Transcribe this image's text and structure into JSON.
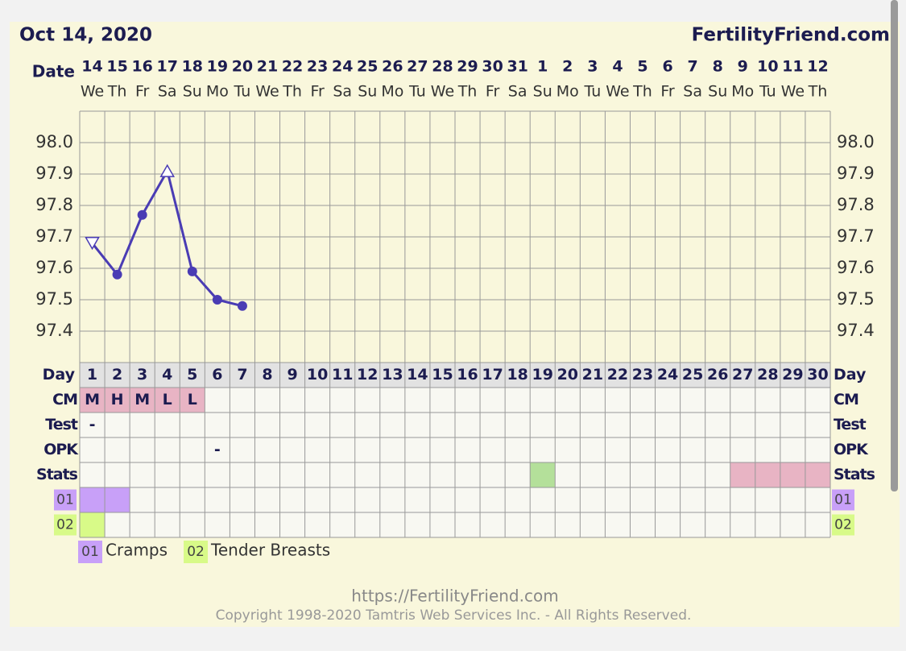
{
  "header": {
    "date": "Oct 14, 2020",
    "brand": "FertilityFriend.com"
  },
  "chart_data": {
    "type": "line",
    "x_label": "Date",
    "categories": [
      "14",
      "15",
      "16",
      "17",
      "18",
      "19",
      "20",
      "21",
      "22",
      "23",
      "24",
      "25",
      "26",
      "27",
      "28",
      "29",
      "30",
      "31",
      "1",
      "2",
      "3",
      "4",
      "5",
      "6",
      "7",
      "8",
      "9",
      "10",
      "11",
      "12"
    ],
    "weekdays": [
      "We",
      "Th",
      "Fr",
      "Sa",
      "Su",
      "Mo",
      "Tu",
      "We",
      "Th",
      "Fr",
      "Sa",
      "Su",
      "Mo",
      "Tu",
      "We",
      "Th",
      "Fr",
      "Sa",
      "Su",
      "Mo",
      "Tu",
      "We",
      "Th",
      "Fr",
      "Sa",
      "Su",
      "Mo",
      "Tu",
      "We",
      "Th"
    ],
    "series": [
      {
        "color": "#4a3cb4",
        "values": [
          97.68,
          97.58,
          97.77,
          97.91,
          97.59,
          97.5,
          97.48,
          null,
          null,
          null,
          null,
          null,
          null,
          null,
          null,
          null,
          null,
          null,
          null,
          null,
          null,
          null,
          null,
          null,
          null,
          null,
          null,
          null,
          null,
          null
        ],
        "markers": [
          "triangle-down",
          "circle",
          "circle",
          "triangle-up",
          "circle",
          "circle",
          "circle",
          null,
          null,
          null,
          null,
          null,
          null,
          null,
          null,
          null,
          null,
          null,
          null,
          null,
          null,
          null,
          null,
          null,
          null,
          null,
          null,
          null,
          null,
          null
        ]
      }
    ],
    "ylim": [
      97.3,
      98.1
    ],
    "yticks": [
      {
        "value": 98,
        "label": "98.0"
      },
      97.9,
      97.8,
      97.7,
      97.6,
      97.5,
      97.4
    ],
    "grid": true
  },
  "day_row": {
    "label": "Day",
    "days": [
      1,
      2,
      3,
      4,
      5,
      6,
      7,
      8,
      9,
      10,
      11,
      12,
      13,
      14,
      15,
      16,
      17,
      18,
      19,
      20,
      21,
      22,
      23,
      24,
      25,
      26,
      27,
      28,
      29,
      30
    ]
  },
  "rows": [
    {
      "label": "CM",
      "texts": [
        "M",
        "H",
        "M",
        "L",
        "L",
        null,
        null,
        null,
        null,
        null,
        null,
        null,
        null,
        null,
        null,
        null,
        null,
        null,
        null,
        null,
        null,
        null,
        null,
        null,
        null,
        null,
        null,
        null,
        null,
        null
      ],
      "colors": [
        "#e8b4c4",
        "#e8b4c4",
        "#e8b4c4",
        "#e8b4c4",
        "#e8b4c4",
        null,
        null,
        null,
        null,
        null,
        null,
        null,
        null,
        null,
        null,
        null,
        null,
        null,
        null,
        null,
        null,
        null,
        null,
        null,
        null,
        null,
        null,
        null,
        null,
        null
      ]
    },
    {
      "label": "Test",
      "texts": [
        "-",
        null,
        null,
        null,
        null,
        null,
        null,
        null,
        null,
        null,
        null,
        null,
        null,
        null,
        null,
        null,
        null,
        null,
        null,
        null,
        null,
        null,
        null,
        null,
        null,
        null,
        null,
        null,
        null,
        null
      ]
    },
    {
      "label": "OPK",
      "texts": [
        null,
        null,
        null,
        null,
        null,
        "-",
        null,
        null,
        null,
        null,
        null,
        null,
        null,
        null,
        null,
        null,
        null,
        null,
        null,
        null,
        null,
        null,
        null,
        null,
        null,
        null,
        null,
        null,
        null,
        null
      ]
    },
    {
      "label": "Stats",
      "colors": [
        null,
        null,
        null,
        null,
        null,
        null,
        null,
        null,
        null,
        null,
        null,
        null,
        null,
        null,
        null,
        null,
        null,
        null,
        "#b4e09a",
        null,
        null,
        null,
        null,
        null,
        null,
        null,
        "#e8b4c4",
        "#e8b4c4",
        "#e8b4c4",
        "#e8b4c4"
      ]
    },
    {
      "label": "01",
      "label_color": "#c8a0f8",
      "colors": [
        "#c8a0f8",
        "#c8a0f8",
        null,
        null,
        null,
        null,
        null,
        null,
        null,
        null,
        null,
        null,
        null,
        null,
        null,
        null,
        null,
        null,
        null,
        null,
        null,
        null,
        null,
        null,
        null,
        null,
        null,
        null,
        null,
        null
      ]
    },
    {
      "label": "02",
      "label_color": "#d8fa88",
      "colors": [
        "#d8fa88",
        null,
        null,
        null,
        null,
        null,
        null,
        null,
        null,
        null,
        null,
        null,
        null,
        null,
        null,
        null,
        null,
        null,
        null,
        null,
        null,
        null,
        null,
        null,
        null,
        null,
        null,
        null,
        null,
        null
      ]
    }
  ],
  "legend": [
    {
      "code": "01",
      "name": "Cramps",
      "color": "#c8a0f8"
    },
    {
      "code": "02",
      "name": "Tender Breasts",
      "color": "#d8fa88"
    }
  ],
  "footer": {
    "url": "https://FertilityFriend.com",
    "copyright": "Copyright 1998-2020 Tamtris Web Services Inc. - All Rights Reserved."
  }
}
